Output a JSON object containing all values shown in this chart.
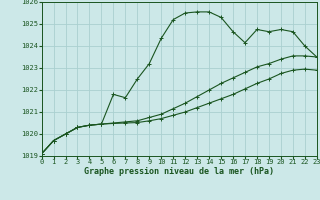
{
  "title": "Graphe pression niveau de la mer (hPa)",
  "bg_color": "#cce8e8",
  "grid_color": "#aad0d0",
  "line_color": "#1a5520",
  "x_min": 0,
  "x_max": 23,
  "y_min": 1019,
  "y_max": 1026,
  "line1_y": [
    1019.1,
    1019.7,
    1020.0,
    1020.3,
    1020.4,
    1020.45,
    1021.8,
    1021.65,
    1022.5,
    1023.2,
    1024.35,
    1025.2,
    1025.5,
    1025.55,
    1025.55,
    1025.3,
    1024.65,
    1024.15,
    1024.75,
    1024.65,
    1024.75,
    1024.65,
    1024.0,
    1023.5
  ],
  "line2_y": [
    1019.1,
    1019.7,
    1020.0,
    1020.3,
    1020.4,
    1020.45,
    1020.5,
    1020.55,
    1020.6,
    1020.75,
    1020.9,
    1021.15,
    1021.4,
    1021.7,
    1022.0,
    1022.3,
    1022.55,
    1022.8,
    1023.05,
    1023.2,
    1023.4,
    1023.55,
    1023.55,
    1023.5
  ],
  "line3_y": [
    1019.1,
    1019.7,
    1020.0,
    1020.3,
    1020.4,
    1020.45,
    1020.48,
    1020.5,
    1020.52,
    1020.6,
    1020.7,
    1020.85,
    1021.0,
    1021.2,
    1021.4,
    1021.6,
    1021.8,
    1022.05,
    1022.3,
    1022.5,
    1022.75,
    1022.9,
    1022.95,
    1022.9
  ],
  "yticks": [
    1019,
    1020,
    1021,
    1022,
    1023,
    1024,
    1025,
    1026
  ],
  "xticks": [
    0,
    1,
    2,
    3,
    4,
    5,
    6,
    7,
    8,
    9,
    10,
    11,
    12,
    13,
    14,
    15,
    16,
    17,
    18,
    19,
    20,
    21,
    22,
    23
  ]
}
